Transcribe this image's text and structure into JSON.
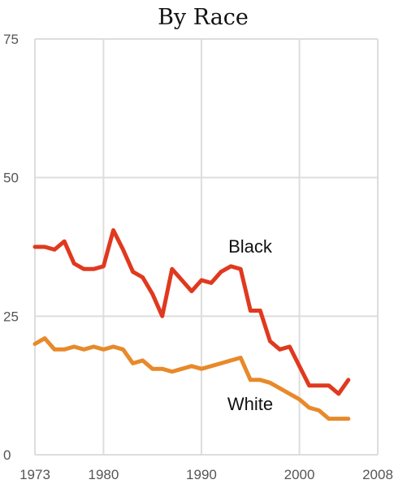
{
  "chart_data": {
    "type": "line",
    "title": "By Race",
    "xlabel": "",
    "ylabel": "",
    "xlim": [
      1973,
      2008
    ],
    "ylim": [
      0,
      75
    ],
    "x_ticks": [
      1973,
      1980,
      1990,
      2000,
      2008
    ],
    "y_ticks": [
      0,
      25,
      50,
      75
    ],
    "grid": true,
    "series": [
      {
        "name": "Black",
        "color": "#e0391f",
        "x": [
          1973,
          1974,
          1975,
          1976,
          1977,
          1978,
          1979,
          1980,
          1981,
          1982,
          1983,
          1984,
          1985,
          1986,
          1987,
          1988,
          1989,
          1990,
          1991,
          1992,
          1993,
          1994,
          1995,
          1996,
          1997,
          1998,
          1999,
          2000,
          2001,
          2002,
          2003,
          2004,
          2005
        ],
        "values": [
          37.5,
          37.5,
          37.0,
          38.5,
          34.5,
          33.5,
          33.5,
          34.0,
          40.5,
          37.0,
          33.0,
          32.0,
          29.0,
          25.0,
          33.5,
          31.5,
          29.5,
          31.5,
          31.0,
          33.0,
          34.0,
          33.5,
          26.0,
          26.0,
          20.5,
          19.0,
          19.5,
          16.0,
          12.5,
          12.5,
          12.5,
          11.0,
          13.5
        ]
      },
      {
        "name": "White",
        "color": "#e8892a",
        "x": [
          1973,
          1974,
          1975,
          1976,
          1977,
          1978,
          1979,
          1980,
          1981,
          1982,
          1983,
          1984,
          1985,
          1986,
          1987,
          1988,
          1989,
          1990,
          1991,
          1992,
          1993,
          1994,
          1995,
          1996,
          1997,
          1998,
          1999,
          2000,
          2001,
          2002,
          2003,
          2004,
          2005
        ],
        "values": [
          20.0,
          21.0,
          19.0,
          19.0,
          19.5,
          19.0,
          19.5,
          19.0,
          19.5,
          19.0,
          16.5,
          17.0,
          15.5,
          15.5,
          15.0,
          15.5,
          16.0,
          15.5,
          16.0,
          16.5,
          17.0,
          17.5,
          13.5,
          13.5,
          13.0,
          12.0,
          11.0,
          10.0,
          8.5,
          8.0,
          6.5,
          6.5,
          6.5
        ]
      }
    ]
  }
}
